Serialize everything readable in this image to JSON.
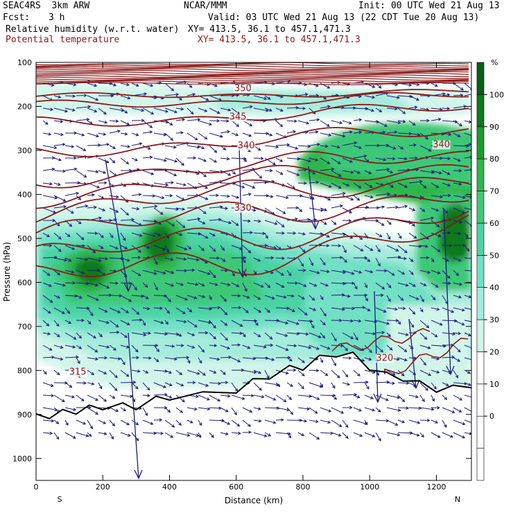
{
  "header": {
    "model": "SEAC4RS  3km ARW",
    "org": "NCAR/MMM",
    "init": "Init: 00 UTC Wed 21 Aug 13",
    "fcst_label": "Fcst:",
    "fcst_value": "3 h",
    "valid": "Valid: 03 UTC Wed 21 Aug 13 (22 CDT Tue 20 Aug 13)",
    "field1": "Relative humidity (w.r.t. water)",
    "field1_xy": "XY= 413.5, 36.1 to 457.1,471.3",
    "field2": "Potential temperature",
    "field2_xy": "XY= 413.5, 36.1 to 457.1,471.3"
  },
  "colors": {
    "theta_contour": "#8b1a1a",
    "wind_vector": "#1a1a7a",
    "terrain": "#000000",
    "rh_scale": [
      "#ffffff",
      "#ffffff",
      "#ffffff",
      "#ffffff",
      "#d2f5ea",
      "#a5ecdc",
      "#72e0c4",
      "#4cd3a4",
      "#3ec878",
      "#2fb64e",
      "#1d9a2e",
      "#0f7a1e",
      "#0a5e17"
    ]
  },
  "chart_data": {
    "type": "cross-section",
    "xlabel": "Distance (km)",
    "ylabel": "Pressure (hPa)",
    "x_ticks": [
      0,
      200,
      400,
      600,
      800,
      1000,
      1200
    ],
    "y_ticks": [
      100,
      200,
      300,
      400,
      500,
      600,
      700,
      800,
      900,
      1000
    ],
    "xlim": [
      0,
      1305
    ],
    "ylim": [
      1050,
      100
    ],
    "endpoints": {
      "left": "S",
      "right": "N"
    },
    "colorbar": {
      "unit": "%",
      "levels": [
        0,
        10,
        20,
        30,
        40,
        50,
        60,
        70,
        80,
        90,
        100
      ]
    },
    "theta_labels": [
      {
        "value": "350",
        "x": 620,
        "p": 165
      },
      {
        "value": "345",
        "x": 605,
        "p": 230
      },
      {
        "value": "340",
        "x": 630,
        "p": 295
      },
      {
        "value": "340",
        "x": 1215,
        "p": 293
      },
      {
        "value": "330",
        "x": 620,
        "p": 437
      },
      {
        "value": "320",
        "x": 1045,
        "p": 778
      },
      {
        "value": "315",
        "x": 125,
        "p": 810
      }
    ],
    "terrain_surface": {
      "x": [
        0,
        40,
        80,
        120,
        160,
        200,
        260,
        300,
        360,
        400,
        500,
        600,
        650,
        700,
        760,
        800,
        850,
        900,
        950,
        1000,
        1050,
        1100,
        1150,
        1200,
        1250,
        1305
      ],
      "p": [
        905,
        900,
        895,
        890,
        885,
        880,
        880,
        880,
        865,
        858,
        855,
        842,
        825,
        810,
        795,
        790,
        772,
        760,
        765,
        790,
        810,
        815,
        830,
        840,
        840,
        830
      ]
    }
  }
}
